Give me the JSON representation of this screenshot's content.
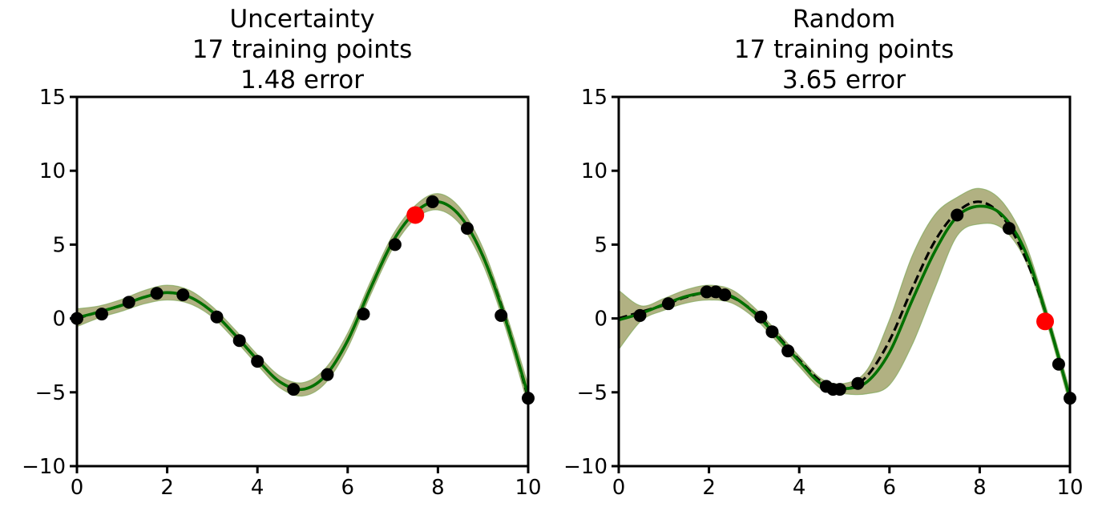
{
  "chart_data": [
    {
      "type": "line",
      "title": [
        "Uncertainty",
        "17 training points",
        "1.48 error"
      ],
      "xlabel": "",
      "ylabel": "",
      "xlim": [
        0,
        10
      ],
      "ylim": [
        -10,
        15
      ],
      "xticks": [
        0,
        2,
        4,
        6,
        8,
        10
      ],
      "yticks": [
        -10,
        -5,
        0,
        5,
        10,
        15
      ],
      "xtick_labels": [
        "0",
        "2",
        "4",
        "6",
        "8",
        "10"
      ],
      "ytick_labels": [
        "−10",
        "−5",
        "0",
        "5",
        "10",
        "15"
      ],
      "grid": false,
      "legend": "none",
      "colors": {
        "true_function": "#000000",
        "prediction": "#007000",
        "band_red": "#f4a7a0",
        "band_green": "#7fa85a",
        "band_overlap": "#a8ad7a",
        "training_points": "#000000",
        "next_query": "#ff0000"
      },
      "true_function": {
        "x": [
          0,
          0.5,
          1,
          1.5,
          2,
          2.5,
          3,
          3.5,
          4,
          4.5,
          5,
          5.5,
          6,
          6.5,
          7,
          7.5,
          8,
          8.5,
          9,
          9.5,
          10
        ],
        "y": [
          0,
          0.45,
          0.9,
          1.45,
          1.75,
          1.45,
          0.45,
          -1.1,
          -2.8,
          -4.3,
          -4.8,
          -3.9,
          -1.5,
          2.0,
          5.2,
          7.2,
          7.9,
          6.9,
          4.2,
          0.0,
          -5.4
        ]
      },
      "prediction": {
        "x": [
          0,
          0.5,
          1,
          1.5,
          2,
          2.5,
          3,
          3.5,
          4,
          4.5,
          5,
          5.5,
          6,
          6.5,
          7,
          7.5,
          8,
          8.5,
          9,
          9.5,
          10
        ],
        "y": [
          0.05,
          0.45,
          0.9,
          1.45,
          1.75,
          1.45,
          0.45,
          -1.1,
          -2.8,
          -4.3,
          -4.8,
          -3.9,
          -1.5,
          2.0,
          5.2,
          7.2,
          7.9,
          6.9,
          4.2,
          -0.1,
          -5.2
        ],
        "band": [
          0.6,
          0.4,
          0.4,
          0.45,
          0.5,
          0.45,
          0.35,
          0.35,
          0.35,
          0.4,
          0.45,
          0.5,
          0.5,
          0.45,
          0.45,
          0.45,
          0.55,
          0.55,
          0.55,
          0.55,
          0.7
        ]
      },
      "training_points": {
        "x": [
          0,
          0.55,
          1.15,
          1.77,
          2.35,
          3.1,
          3.6,
          4.0,
          4.8,
          5.55,
          6.35,
          7.05,
          7.88,
          8.65,
          9.4,
          10.0
        ],
        "y": [
          0.0,
          0.3,
          1.1,
          1.7,
          1.6,
          0.1,
          -1.5,
          -2.9,
          -4.8,
          -3.8,
          0.3,
          5.0,
          7.9,
          6.1,
          0.2,
          -5.4
        ]
      },
      "next_query": {
        "x": [
          7.5
        ],
        "y": [
          7.0
        ]
      }
    },
    {
      "type": "line",
      "title": [
        "Random",
        "17 training points",
        "3.65 error"
      ],
      "xlabel": "",
      "ylabel": "",
      "xlim": [
        0,
        10
      ],
      "ylim": [
        -10,
        15
      ],
      "xticks": [
        0,
        2,
        4,
        6,
        8,
        10
      ],
      "yticks": [
        -10,
        -5,
        0,
        5,
        10,
        15
      ],
      "xtick_labels": [
        "0",
        "2",
        "4",
        "6",
        "8",
        "10"
      ],
      "ytick_labels": [
        "−10",
        "−5",
        "0",
        "5",
        "10",
        "15"
      ],
      "grid": false,
      "legend": "none",
      "colors": {
        "true_function": "#000000",
        "prediction": "#007000",
        "band_red": "#f4a7a0",
        "band_green": "#7fa85a",
        "band_overlap": "#a8ad7a",
        "training_points": "#000000",
        "next_query": "#ff0000"
      },
      "true_function": {
        "x": [
          0,
          0.5,
          1,
          1.5,
          2,
          2.5,
          3,
          3.5,
          4,
          4.5,
          5,
          5.5,
          6,
          6.5,
          7,
          7.5,
          8,
          8.5,
          9,
          9.5,
          10
        ],
        "y": [
          0,
          0.45,
          0.9,
          1.45,
          1.75,
          1.45,
          0.45,
          -1.1,
          -2.8,
          -4.3,
          -4.8,
          -3.9,
          -1.5,
          2.0,
          5.2,
          7.2,
          7.9,
          6.9,
          4.2,
          0.0,
          -5.4
        ]
      },
      "prediction": {
        "x": [
          0,
          0.5,
          1,
          1.5,
          2,
          2.5,
          3,
          3.5,
          4,
          4.5,
          5,
          5.5,
          6,
          6.5,
          7,
          7.5,
          8,
          8.5,
          9,
          9.5,
          10
        ],
        "y": [
          -0.1,
          0.35,
          0.95,
          1.5,
          1.75,
          1.5,
          0.4,
          -1.2,
          -2.9,
          -4.45,
          -4.75,
          -4.3,
          -2.3,
          1.2,
          4.5,
          6.9,
          7.6,
          7.0,
          4.6,
          0.0,
          -5.4
        ],
        "band": [
          2.0,
          0.5,
          0.4,
          0.45,
          0.5,
          0.45,
          0.35,
          0.35,
          0.35,
          0.35,
          0.35,
          0.8,
          2.2,
          3.0,
          2.5,
          1.3,
          1.2,
          0.9,
          0.6,
          0.45,
          0.5
        ]
      },
      "training_points": {
        "x": [
          0.47,
          1.1,
          1.95,
          2.15,
          2.35,
          3.15,
          3.4,
          3.75,
          4.6,
          4.75,
          4.9,
          5.3,
          7.5,
          8.65,
          9.75,
          10.0
        ],
        "y": [
          0.2,
          1.0,
          1.8,
          1.8,
          1.6,
          0.1,
          -0.9,
          -2.2,
          -4.6,
          -4.8,
          -4.8,
          -4.4,
          7.0,
          6.1,
          -3.1,
          -5.4
        ]
      },
      "next_query": {
        "x": [
          9.45
        ],
        "y": [
          -0.2
        ]
      }
    }
  ]
}
